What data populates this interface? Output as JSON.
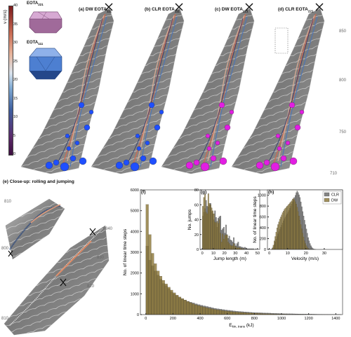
{
  "colorbar": {
    "title": "v (m/s)",
    "ticks": [
      "0",
      "5",
      "10",
      "15",
      "20",
      "25",
      "30",
      "35",
      "40"
    ]
  },
  "shapes": {
    "eota221_label": "EOTA",
    "eota221_sub": "221",
    "eota111_label": "EOTA",
    "eota111_sub": "111"
  },
  "panels": {
    "a": {
      "label": "(a) DW EOTA",
      "sub": "111"
    },
    "b": {
      "label": "(b) CLR EOTA",
      "sub": "111"
    },
    "c": {
      "label": "(c) DW EOTA",
      "sub": "221"
    },
    "d": {
      "label": "(d) CLR EOTA",
      "sub": "221"
    },
    "e": {
      "label": "(e) Close-up: rolling and jumping"
    },
    "f": {
      "label": "(f)"
    },
    "g": {
      "label": "(g)"
    },
    "h": {
      "label": "(h)"
    }
  },
  "elevations_top": [
    "850",
    "800",
    "750",
    "710"
  ],
  "elevations_closeup": [
    "810",
    "800",
    "840",
    "830",
    "820",
    "810"
  ],
  "colors": {
    "clr": "#6e6e6e",
    "dw": "#8a7433",
    "blue_deposit": "#1f4fff",
    "magenta_deposit": "#e21ee2"
  },
  "chart_data": [
    {
      "type": "bar",
      "title": "(f)",
      "xlabel": "E",
      "xlabel_sub": "kin, trans",
      "xlabel_unit": "(kJ)",
      "ylabel": "No. of linear time steps",
      "xlim": [
        -40,
        1450
      ],
      "ylim": [
        0,
        6000
      ],
      "xticks": [
        "0",
        "200",
        "400",
        "600",
        "800",
        "1000",
        "1200",
        "1400"
      ],
      "yticks": [
        "0",
        "1000",
        "2000",
        "3000",
        "4000",
        "5000",
        "6000"
      ],
      "bin_width": 20,
      "bin_start": 0,
      "series": [
        {
          "name": "CLR",
          "values": [
            3300,
            2620,
            2350,
            2100,
            1900,
            1700,
            1500,
            1400,
            1250,
            1100,
            1000,
            900,
            820,
            760,
            700,
            640,
            600,
            560,
            520,
            480,
            450,
            420,
            390,
            360,
            330,
            300,
            280,
            260,
            240,
            220,
            205,
            190,
            175,
            160,
            150,
            140,
            130,
            120,
            110,
            100,
            95,
            90,
            85,
            80,
            75,
            70,
            65,
            60,
            55,
            50,
            45,
            42,
            40,
            38,
            35,
            33,
            30,
            28,
            26,
            24,
            22,
            20,
            18,
            16,
            15,
            14,
            12,
            10,
            8,
            6,
            5,
            4
          ]
        },
        {
          "name": "DW",
          "values": [
            5300,
            3850,
            2950,
            2450,
            2100,
            1850,
            1650,
            1480,
            1320,
            1180,
            1050,
            940,
            850,
            770,
            700,
            630,
            570,
            520,
            470,
            430,
            390,
            360,
            330,
            300,
            270,
            250,
            230,
            210,
            190,
            175,
            160,
            145,
            130,
            120,
            110,
            100,
            90,
            82,
            75,
            68,
            62,
            56,
            50,
            45,
            40,
            36,
            32,
            28,
            25,
            22,
            20,
            18,
            16,
            14,
            12,
            10,
            9,
            8,
            7,
            6,
            5,
            4,
            3,
            3,
            2,
            2,
            2,
            1,
            1,
            1,
            1,
            1
          ]
        }
      ]
    },
    {
      "type": "bar",
      "title": "(g)",
      "xlabel": "Jump length (m)",
      "ylabel": "No. jumps",
      "xlim": [
        -2,
        52
      ],
      "ylim": [
        0,
        80
      ],
      "xticks": [
        "0",
        "10",
        "20",
        "30",
        "40",
        "50"
      ],
      "yticks": [
        "0",
        "20",
        "40",
        "60",
        "80"
      ],
      "bin_width": 1,
      "bin_start": 0,
      "series": [
        {
          "name": "CLR",
          "values": [
            45,
            50,
            55,
            66,
            58,
            57,
            60,
            62,
            51,
            48,
            40,
            52,
            43,
            30,
            42,
            44,
            45,
            26,
            28,
            30,
            22,
            33,
            20,
            15,
            18,
            13,
            12,
            10,
            16,
            8,
            5,
            8,
            10,
            4,
            4,
            3,
            3,
            2,
            3,
            2,
            1,
            1,
            1,
            1,
            1,
            1,
            1,
            0,
            1,
            0,
            0
          ]
        },
        {
          "name": "DW",
          "values": [
            58,
            70,
            74,
            50,
            48,
            75,
            62,
            60,
            56,
            52,
            48,
            37,
            36,
            38,
            35,
            40,
            22,
            10,
            21,
            14,
            19,
            20,
            19,
            10,
            8,
            6,
            5,
            5,
            8,
            4,
            4,
            2,
            3,
            2,
            2,
            1,
            1,
            1,
            0,
            0,
            0,
            0,
            0,
            0,
            0,
            0,
            0,
            0,
            0,
            0,
            0
          ]
        }
      ]
    },
    {
      "type": "bar",
      "title": "(h)",
      "xlabel": "Velocity (m/s)",
      "ylabel": "No. of linear time steps",
      "xlim": [
        -1,
        40
      ],
      "ylim": [
        0,
        1100
      ],
      "xticks": [
        "0",
        "10",
        "20",
        "30"
      ],
      "yticks": [
        "0",
        "200",
        "400",
        "600",
        "800",
        "1000"
      ],
      "legend": [
        "CLR",
        "DW"
      ],
      "legend_position": "top-right",
      "bin_width": 0.5,
      "bin_start": 1,
      "series": [
        {
          "name": "CLR",
          "values": [
            5,
            20,
            50,
            90,
            140,
            190,
            240,
            290,
            330,
            370,
            410,
            450,
            490,
            530,
            570,
            600,
            630,
            660,
            690,
            720,
            760,
            800,
            840,
            880,
            920,
            960,
            1000,
            1050,
            1080,
            1050,
            1010,
            960,
            880,
            790,
            700,
            620,
            540,
            460,
            380,
            300,
            220,
            160,
            110,
            70,
            40,
            20,
            10,
            5,
            3
          ]
        },
        {
          "name": "DW",
          "values": [
            5,
            30,
            80,
            160,
            240,
            320,
            400,
            460,
            510,
            560,
            600,
            640,
            680,
            710,
            740,
            760,
            780,
            800,
            820,
            840,
            860,
            880,
            900,
            930,
            950,
            920,
            880,
            840,
            780,
            700,
            620,
            540,
            460,
            380,
            300,
            230,
            160,
            110,
            70,
            40,
            20,
            10,
            5,
            3,
            2,
            1,
            0,
            0,
            0
          ]
        }
      ]
    }
  ]
}
